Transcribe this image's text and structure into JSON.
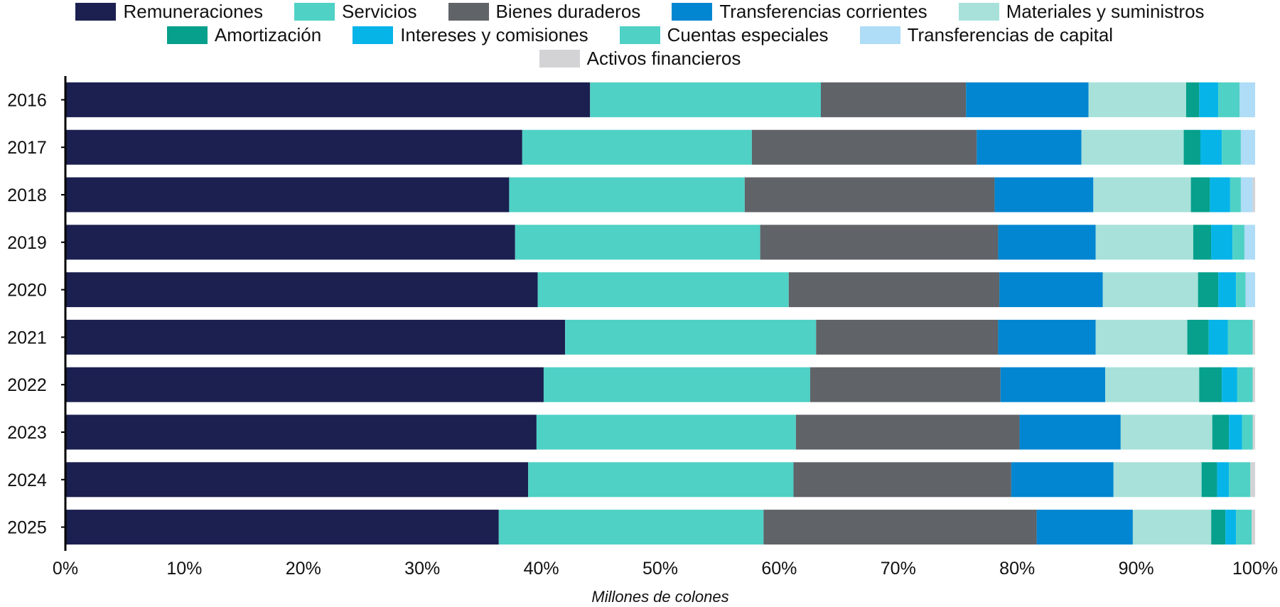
{
  "chart_data": {
    "type": "bar",
    "orientation": "horizontal",
    "stacked": "percent",
    "categories": [
      "2016",
      "2017",
      "2018",
      "2019",
      "2020",
      "2021",
      "2022",
      "2023",
      "2024",
      "2025"
    ],
    "xlabel": "Millones de colones",
    "xlim": [
      0,
      100
    ],
    "xticks": [
      "0%",
      "10%",
      "20%",
      "30%",
      "40%",
      "50%",
      "60%",
      "70%",
      "80%",
      "90%",
      "100%"
    ],
    "legend_position": "top",
    "series": [
      {
        "name": "Remuneraciones",
        "color": "#1b2050",
        "values": [
          44.1,
          38.4,
          37.3,
          37.8,
          39.7,
          42.0,
          40.2,
          39.6,
          38.9,
          36.5
        ]
      },
      {
        "name": "Servicios",
        "color": "#4fd1c5",
        "values": [
          19.4,
          19.3,
          19.8,
          20.6,
          21.1,
          21.1,
          22.4,
          21.8,
          22.3,
          22.3
        ]
      },
      {
        "name": "Bienes duraderos",
        "color": "#606368",
        "values": [
          12.2,
          18.9,
          21.0,
          20.0,
          17.7,
          15.3,
          16.0,
          18.8,
          18.3,
          23.0
        ]
      },
      {
        "name": "Transferencias corrientes",
        "color": "#0386d1",
        "values": [
          10.3,
          8.8,
          8.3,
          8.2,
          8.7,
          8.2,
          8.8,
          8.5,
          8.6,
          8.1
        ]
      },
      {
        "name": "Materiales y suministros",
        "color": "#a7e1da",
        "values": [
          8.2,
          8.6,
          8.2,
          8.2,
          8.0,
          7.7,
          7.9,
          7.7,
          7.4,
          6.6
        ]
      },
      {
        "name": "Amortización",
        "color": "#06a08c",
        "values": [
          1.1,
          1.4,
          1.6,
          1.5,
          1.7,
          1.8,
          1.9,
          1.4,
          1.3,
          1.2
        ]
      },
      {
        "name": "Intereses y comisiones",
        "color": "#06b4e8",
        "values": [
          1.6,
          1.8,
          1.7,
          1.8,
          1.5,
          1.6,
          1.3,
          1.1,
          1.0,
          0.9
        ]
      },
      {
        "name": "Cuentas especiales",
        "color": "#4fd1c5",
        "values": [
          1.8,
          1.6,
          0.9,
          1.0,
          0.8,
          2.1,
          1.3,
          0.9,
          1.8,
          1.3
        ]
      },
      {
        "name": "Transferencias de capital",
        "color": "#afdcf7",
        "values": [
          1.3,
          1.2,
          1.0,
          0.9,
          0.8,
          0.0,
          0.0,
          0.0,
          0.0,
          0.0
        ]
      },
      {
        "name": "Activos financieros",
        "color": "#d3d3d5",
        "values": [
          0.0,
          0.0,
          0.2,
          0.0,
          0.0,
          0.2,
          0.2,
          0.2,
          0.4,
          0.3
        ]
      }
    ]
  }
}
